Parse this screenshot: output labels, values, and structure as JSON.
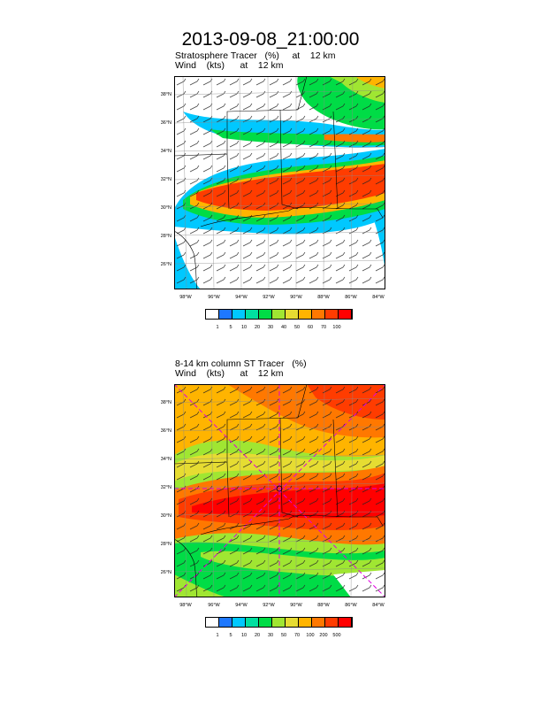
{
  "title": "2013-09-08_21:00:00",
  "panel1": {
    "line1": "Stratosphere Tracer   (%)     at    12 km",
    "line2": "Wind    (kts)      at    12 km",
    "lat_labels": [
      "38°N",
      "36°N",
      "34°N",
      "32°N",
      "30°N",
      "28°N",
      "26°N"
    ],
    "lon_labels": [
      "98°W",
      "96°W",
      "94°W",
      "92°W",
      "90°W",
      "88°W",
      "86°W",
      "84°W"
    ],
    "colorbar": {
      "labels": [
        "1",
        "5",
        "10",
        "20",
        "30",
        "40",
        "50",
        "60",
        "70",
        "100"
      ],
      "colors": [
        "#ffffff",
        "#1e78ff",
        "#00c8ff",
        "#00e0a0",
        "#00dc46",
        "#a0e632",
        "#e6dc32",
        "#ffb400",
        "#ff7800",
        "#ff3c00",
        "#ff0000"
      ]
    }
  },
  "panel2": {
    "line1": "8-14 km column ST Tracer   (%)",
    "line2": "Wind    (kts)      at    12 km",
    "lat_labels": [
      "38°N",
      "36°N",
      "34°N",
      "32°N",
      "30°N",
      "28°N",
      "26°N"
    ],
    "lon_labels": [
      "98°W",
      "96°W",
      "94°W",
      "92°W",
      "90°W",
      "88°W",
      "86°W",
      "84°W"
    ],
    "colorbar": {
      "labels": [
        "1",
        "5",
        "10",
        "20",
        "30",
        "50",
        "70",
        "100",
        "200",
        "500"
      ],
      "colors": [
        "#ffffff",
        "#1e78ff",
        "#00c8ff",
        "#00e0a0",
        "#00dc46",
        "#a0e632",
        "#e6dc32",
        "#ffb400",
        "#ff7800",
        "#ff3c00",
        "#ff0000"
      ]
    }
  }
}
